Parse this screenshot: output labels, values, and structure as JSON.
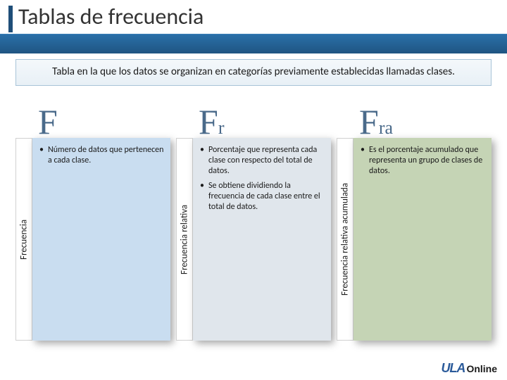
{
  "title": "Tablas de frecuencia",
  "intro": "Tabla en la que los datos se organizan en categorías previamente establecidas llamadas clases.",
  "columns": [
    {
      "symbol_big": "F",
      "symbol_sub": "",
      "vlabel": "Frecuencia",
      "card_bg": "#c9ddf0",
      "bullets": [
        "Número de datos que pertenecen a cada clase."
      ]
    },
    {
      "symbol_big": "F",
      "symbol_sub": "r",
      "vlabel": "Frecuencia relativa",
      "card_bg": "#e0e6ec",
      "bullets": [
        "Porcentaje que representa cada clase con respecto del total de datos.",
        "Se obtiene dividiendo la frecuencia de cada clase entre el total de datos."
      ]
    },
    {
      "symbol_big": "F",
      "symbol_sub": "ra",
      "vlabel": "Frecuencia relativa acumulada",
      "card_bg": "#c5d4b5",
      "bullets": [
        "Es el porcentaje acumulado que representa un grupo de clases de datos."
      ]
    }
  ],
  "footer": {
    "logo_mark": "ULA",
    "logo_text": "Online"
  },
  "style": {
    "title_color": "#333333",
    "accent_bar": "#1f4e79",
    "band_gradient_top": "#2a6fa8",
    "band_gradient_bottom": "#1f5582",
    "intro_border": "#a8c4d8",
    "symbol_color": "#4a6a8a",
    "card_shadow": "rgba(0,0,0,0.35)"
  }
}
